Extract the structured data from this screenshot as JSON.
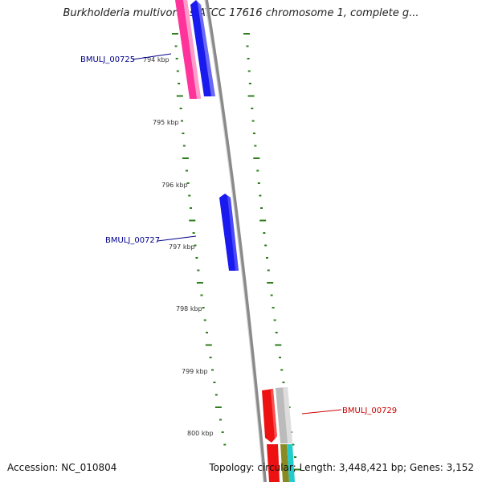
{
  "title": "Burkholderia multivorans ATCC 17616 chromosome 1, complete g...",
  "footer": {
    "accession": "Accession: NC_010804",
    "summary": "Topology: circular; Length: 3,448,421 bp; Genes: 3,152"
  },
  "scale": {
    "unit": "kbp",
    "ticks": [
      {
        "label": "794 kbp"
      },
      {
        "label": "795 kbp"
      },
      {
        "label": "796 kbp"
      },
      {
        "label": "797 kbp"
      },
      {
        "label": "798 kbp"
      },
      {
        "label": "799 kbp"
      },
      {
        "label": "800 kbp"
      }
    ]
  },
  "genes": [
    {
      "name": "BMULJ_00725",
      "color": "#00008b"
    },
    {
      "name": "BMULJ_00727",
      "color": "#00008b"
    },
    {
      "name": "BMULJ_00729",
      "color": "#cc0000"
    }
  ],
  "colors": {
    "backbone": "#8a8a8a",
    "ticks": "#2e7d1e",
    "forward_gene": "#1a1aee",
    "reverse_gene": "#ee1111",
    "pink_gene": "#ff3399",
    "gray_gene": "#bbbbbb",
    "cyan_gene": "#22cccc"
  }
}
